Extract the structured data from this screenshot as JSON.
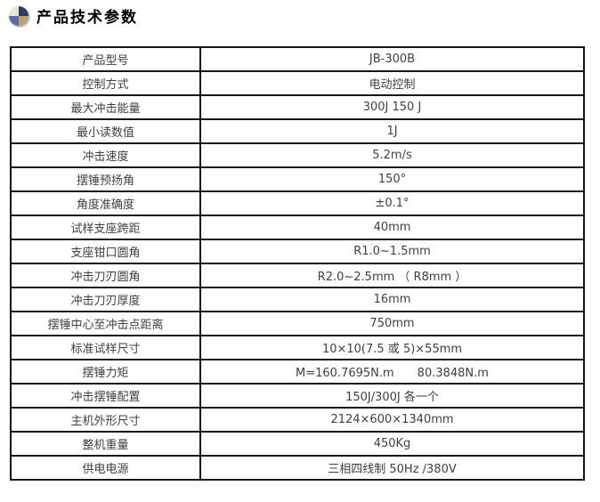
{
  "colors": {
    "background": "#ffffff",
    "table_border": "#161616",
    "cell_text": "#3f3f3f",
    "title_text": "#000000",
    "icon_top_left": "#e9e4d0",
    "icon_top_right": "#2f3b66",
    "icon_bottom_left": "#5a6ca8",
    "icon_bottom_right": "#bfa266"
  },
  "header": {
    "icon": "pie-chart-icon",
    "title": "产品技术参数"
  },
  "table": {
    "rows": [
      {
        "label": "产品型号",
        "value": "JB-300B"
      },
      {
        "label": "控制方式",
        "value": "电动控制"
      },
      {
        "label": "最大冲击能量",
        "value": "300J 150 J"
      },
      {
        "label": "最小读数值",
        "value": "1J"
      },
      {
        "label": "冲击速度",
        "value": "5.2m/s"
      },
      {
        "label": "摆锤预扬角",
        "value": "150°"
      },
      {
        "label": "角度准确度",
        "value": "±0.1°"
      },
      {
        "label": "试样支座跨距",
        "value": "40mm"
      },
      {
        "label": "支座钳口圆角",
        "value": "R1.0~1.5mm"
      },
      {
        "label": "冲击刀刃圆角",
        "value": "R2.0~2.5mm （ R8mm ）"
      },
      {
        "label": "冲击刀刃厚度",
        "value": "16mm"
      },
      {
        "label": "摆锤中心至冲击点距离",
        "value": "750mm"
      },
      {
        "label": "标准试样尺寸",
        "value": "10×10(7.5 或 5)×55mm"
      },
      {
        "label": "摆锤力矩",
        "value": "M=160.7695N.m　　80.3848N.m"
      },
      {
        "label": "冲击摆锤配置",
        "value": "150J/300J 各一个"
      },
      {
        "label": "主机外形尺寸",
        "value": "2124×600×1340mm"
      },
      {
        "label": "整机重量",
        "value": "450Kg"
      },
      {
        "label": "供电电源",
        "value": "三相四线制 50Hz /380V"
      }
    ]
  }
}
